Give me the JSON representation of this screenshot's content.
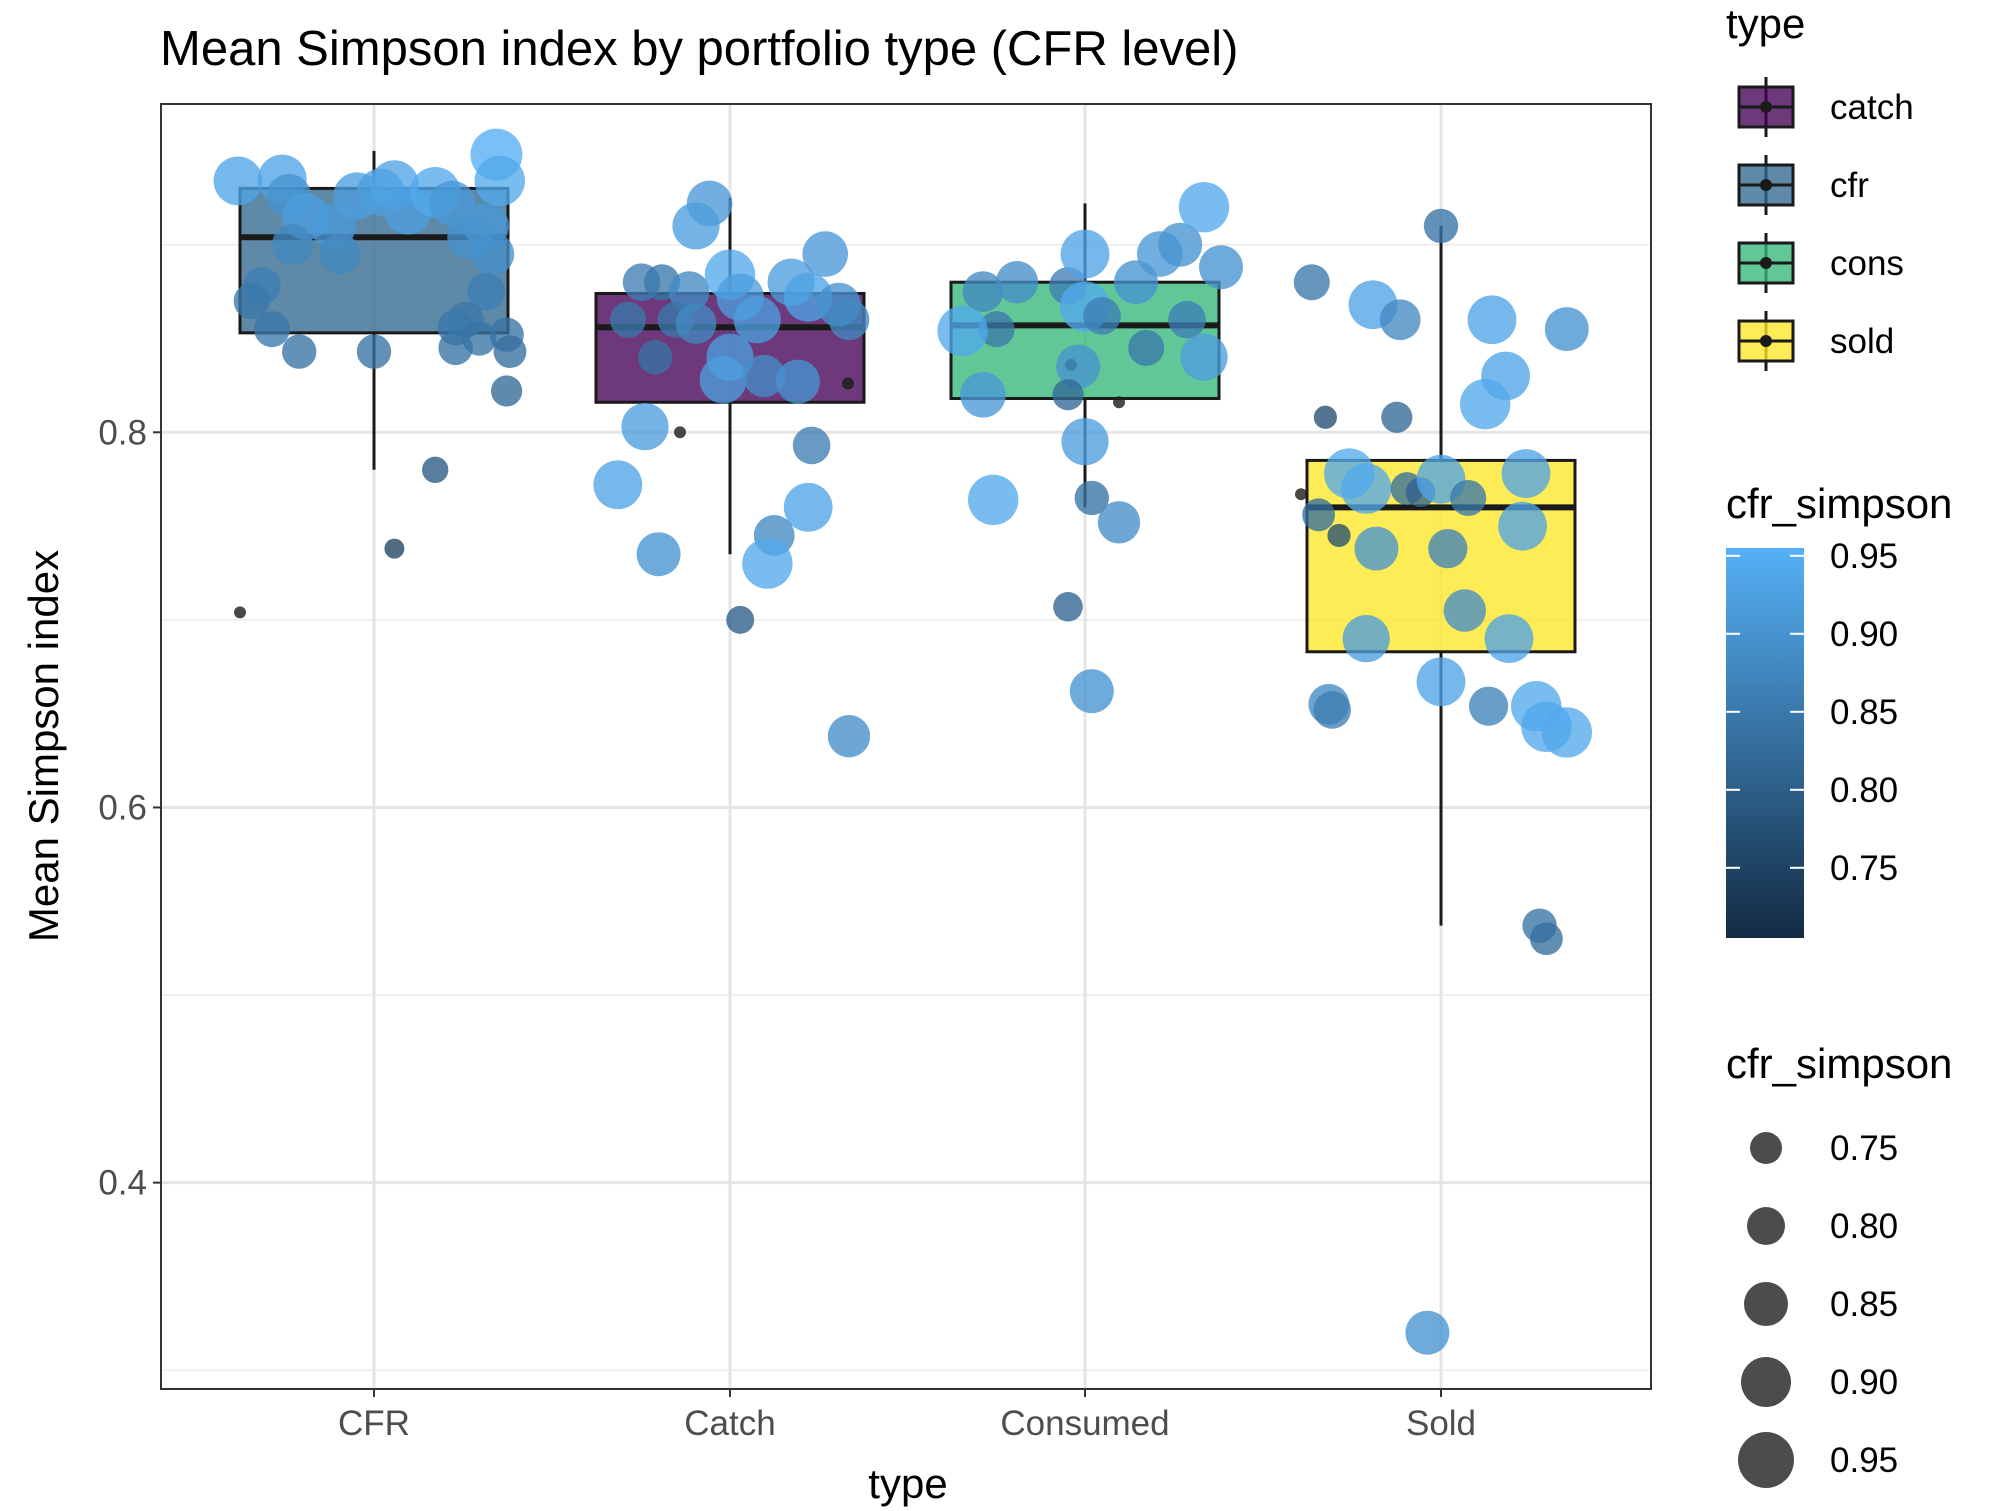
{
  "chart_data": {
    "type": "box",
    "title": "Mean Simpson index by portfolio type (CFR level)",
    "xlabel": "type",
    "ylabel": "Mean Simpson index",
    "ylim": [
      0.29,
      0.975
    ],
    "yticks": [
      0.4,
      0.6,
      0.8
    ],
    "ytick_labels": [
      "0.4",
      "0.6",
      "0.8"
    ],
    "grid": true,
    "categories": [
      "CFR",
      "Catch",
      "Consumed",
      "Sold"
    ],
    "boxes": [
      {
        "category": "CFR",
        "type": "cfr",
        "q1": 0.853,
        "median": 0.904,
        "q3": 0.93,
        "whisker_low": 0.78,
        "whisker_high": 0.95,
        "outliers": [
          0.704
        ]
      },
      {
        "category": "Catch",
        "type": "catch",
        "q1": 0.816,
        "median": 0.856,
        "q3": 0.874,
        "whisker_low": 0.735,
        "whisker_high": 0.925,
        "outliers": [
          0.8,
          0.826
        ]
      },
      {
        "category": "Consumed",
        "type": "cons",
        "q1": 0.818,
        "median": 0.857,
        "q3": 0.88,
        "whisker_low": 0.76,
        "whisker_high": 0.922,
        "outliers": [
          0.836,
          0.816
        ]
      },
      {
        "category": "Sold",
        "type": "sold",
        "q1": 0.683,
        "median": 0.76,
        "q3": 0.785,
        "whisker_low": 0.537,
        "whisker_high": 0.91,
        "outliers": [
          0.767
        ]
      }
    ],
    "points": [
      {
        "category": "CFR",
        "x_jitter": -0.4,
        "y": 0.934,
        "cfr_simpson": 0.93
      },
      {
        "category": "CFR",
        "x_jitter": -0.27,
        "y": 0.935,
        "cfr_simpson": 0.93
      },
      {
        "category": "CFR",
        "x_jitter": -0.25,
        "y": 0.926,
        "cfr_simpson": 0.9
      },
      {
        "category": "CFR",
        "x_jitter": -0.2,
        "y": 0.915,
        "cfr_simpson": 0.92
      },
      {
        "category": "CFR",
        "x_jitter": -0.12,
        "y": 0.91,
        "cfr_simpson": 0.91
      },
      {
        "category": "CFR",
        "x_jitter": -0.05,
        "y": 0.926,
        "cfr_simpson": 0.92
      },
      {
        "category": "CFR",
        "x_jitter": 0.02,
        "y": 0.928,
        "cfr_simpson": 0.92
      },
      {
        "category": "CFR",
        "x_jitter": 0.06,
        "y": 0.932,
        "cfr_simpson": 0.93
      },
      {
        "category": "CFR",
        "x_jitter": 0.1,
        "y": 0.918,
        "cfr_simpson": 0.92
      },
      {
        "category": "CFR",
        "x_jitter": 0.18,
        "y": 0.928,
        "cfr_simpson": 0.94
      },
      {
        "category": "CFR",
        "x_jitter": 0.23,
        "y": 0.922,
        "cfr_simpson": 0.91
      },
      {
        "category": "CFR",
        "x_jitter": 0.33,
        "y": 0.91,
        "cfr_simpson": 0.91
      },
      {
        "category": "CFR",
        "x_jitter": 0.36,
        "y": 0.948,
        "cfr_simpson": 0.95
      },
      {
        "category": "CFR",
        "x_jitter": 0.37,
        "y": 0.934,
        "cfr_simpson": 0.94
      },
      {
        "category": "CFR",
        "x_jitter": -0.24,
        "y": 0.9,
        "cfr_simpson": 0.88
      },
      {
        "category": "CFR",
        "x_jitter": -0.1,
        "y": 0.895,
        "cfr_simpson": 0.88
      },
      {
        "category": "CFR",
        "x_jitter": 0.35,
        "y": 0.895,
        "cfr_simpson": 0.89
      },
      {
        "category": "CFR",
        "x_jitter": 0.28,
        "y": 0.904,
        "cfr_simpson": 0.9
      },
      {
        "category": "CFR",
        "x_jitter": 0.33,
        "y": 0.875,
        "cfr_simpson": 0.86
      },
      {
        "category": "CFR",
        "x_jitter": -0.33,
        "y": 0.878,
        "cfr_simpson": 0.86
      },
      {
        "category": "CFR",
        "x_jitter": -0.36,
        "y": 0.87,
        "cfr_simpson": 0.85
      },
      {
        "category": "CFR",
        "x_jitter": -0.3,
        "y": 0.855,
        "cfr_simpson": 0.85
      },
      {
        "category": "CFR",
        "x_jitter": -0.22,
        "y": 0.843,
        "cfr_simpson": 0.84
      },
      {
        "category": "CFR",
        "x_jitter": 0.0,
        "y": 0.843,
        "cfr_simpson": 0.84
      },
      {
        "category": "CFR",
        "x_jitter": 0.24,
        "y": 0.856,
        "cfr_simpson": 0.85
      },
      {
        "category": "CFR",
        "x_jitter": 0.27,
        "y": 0.86,
        "cfr_simpson": 0.85
      },
      {
        "category": "CFR",
        "x_jitter": 0.24,
        "y": 0.845,
        "cfr_simpson": 0.84
      },
      {
        "category": "CFR",
        "x_jitter": 0.31,
        "y": 0.85,
        "cfr_simpson": 0.84
      },
      {
        "category": "CFR",
        "x_jitter": 0.39,
        "y": 0.852,
        "cfr_simpson": 0.84
      },
      {
        "category": "CFR",
        "x_jitter": 0.4,
        "y": 0.843,
        "cfr_simpson": 0.83
      },
      {
        "category": "CFR",
        "x_jitter": 0.39,
        "y": 0.822,
        "cfr_simpson": 0.82
      },
      {
        "category": "CFR",
        "x_jitter": 0.18,
        "y": 0.78,
        "cfr_simpson": 0.79
      },
      {
        "category": "CFR",
        "x_jitter": 0.06,
        "y": 0.738,
        "cfr_simpson": 0.75
      },
      {
        "category": "Catch",
        "x_jitter": -0.26,
        "y": 0.88,
        "cfr_simpson": 0.86
      },
      {
        "category": "Catch",
        "x_jitter": -0.3,
        "y": 0.86,
        "cfr_simpson": 0.85
      },
      {
        "category": "Catch",
        "x_jitter": -0.2,
        "y": 0.88,
        "cfr_simpson": 0.85
      },
      {
        "category": "Catch",
        "x_jitter": -0.12,
        "y": 0.875,
        "cfr_simpson": 0.88
      },
      {
        "category": "Catch",
        "x_jitter": -0.16,
        "y": 0.86,
        "cfr_simpson": 0.85
      },
      {
        "category": "Catch",
        "x_jitter": -0.22,
        "y": 0.84,
        "cfr_simpson": 0.84
      },
      {
        "category": "Catch",
        "x_jitter": -0.06,
        "y": 0.922,
        "cfr_simpson": 0.91
      },
      {
        "category": "Catch",
        "x_jitter": -0.1,
        "y": 0.858,
        "cfr_simpson": 0.88
      },
      {
        "category": "Catch",
        "x_jitter": -0.25,
        "y": 0.803,
        "cfr_simpson": 0.92
      },
      {
        "category": "Catch",
        "x_jitter": -0.33,
        "y": 0.772,
        "cfr_simpson": 0.93
      },
      {
        "category": "Catch",
        "x_jitter": -0.21,
        "y": 0.735,
        "cfr_simpson": 0.9
      },
      {
        "category": "Catch",
        "x_jitter": -0.1,
        "y": 0.91,
        "cfr_simpson": 0.92
      },
      {
        "category": "Catch",
        "x_jitter": 0.0,
        "y": 0.884,
        "cfr_simpson": 0.94
      },
      {
        "category": "Catch",
        "x_jitter": 0.03,
        "y": 0.872,
        "cfr_simpson": 0.92
      },
      {
        "category": "Catch",
        "x_jitter": 0.08,
        "y": 0.86,
        "cfr_simpson": 0.92
      },
      {
        "category": "Catch",
        "x_jitter": 0.0,
        "y": 0.84,
        "cfr_simpson": 0.92
      },
      {
        "category": "Catch",
        "x_jitter": -0.02,
        "y": 0.828,
        "cfr_simpson": 0.92
      },
      {
        "category": "Catch",
        "x_jitter": 0.1,
        "y": 0.83,
        "cfr_simpson": 0.89
      },
      {
        "category": "Catch",
        "x_jitter": 0.18,
        "y": 0.88,
        "cfr_simpson": 0.92
      },
      {
        "category": "Catch",
        "x_jitter": 0.23,
        "y": 0.872,
        "cfr_simpson": 0.93
      },
      {
        "category": "Catch",
        "x_jitter": 0.28,
        "y": 0.895,
        "cfr_simpson": 0.91
      },
      {
        "category": "Catch",
        "x_jitter": 0.32,
        "y": 0.868,
        "cfr_simpson": 0.9
      },
      {
        "category": "Catch",
        "x_jitter": 0.35,
        "y": 0.86,
        "cfr_simpson": 0.88
      },
      {
        "category": "Catch",
        "x_jitter": 0.2,
        "y": 0.827,
        "cfr_simpson": 0.9
      },
      {
        "category": "Catch",
        "x_jitter": 0.24,
        "y": 0.793,
        "cfr_simpson": 0.86
      },
      {
        "category": "Catch",
        "x_jitter": 0.23,
        "y": 0.76,
        "cfr_simpson": 0.93
      },
      {
        "category": "Catch",
        "x_jitter": 0.13,
        "y": 0.745,
        "cfr_simpson": 0.88
      },
      {
        "category": "Catch",
        "x_jitter": 0.11,
        "y": 0.73,
        "cfr_simpson": 0.94
      },
      {
        "category": "Catch",
        "x_jitter": 0.03,
        "y": 0.7,
        "cfr_simpson": 0.8
      },
      {
        "category": "Catch",
        "x_jitter": 0.35,
        "y": 0.638,
        "cfr_simpson": 0.89
      },
      {
        "category": "Consumed",
        "x_jitter": -0.3,
        "y": 0.875,
        "cfr_simpson": 0.88
      },
      {
        "category": "Consumed",
        "x_jitter": -0.2,
        "y": 0.88,
        "cfr_simpson": 0.89
      },
      {
        "category": "Consumed",
        "x_jitter": -0.26,
        "y": 0.855,
        "cfr_simpson": 0.85
      },
      {
        "category": "Consumed",
        "x_jitter": -0.36,
        "y": 0.854,
        "cfr_simpson": 0.94
      },
      {
        "category": "Consumed",
        "x_jitter": -0.3,
        "y": 0.82,
        "cfr_simpson": 0.91
      },
      {
        "category": "Consumed",
        "x_jitter": -0.27,
        "y": 0.764,
        "cfr_simpson": 0.94
      },
      {
        "category": "Consumed",
        "x_jitter": -0.05,
        "y": 0.878,
        "cfr_simpson": 0.86
      },
      {
        "category": "Consumed",
        "x_jitter": 0.0,
        "y": 0.895,
        "cfr_simpson": 0.93
      },
      {
        "category": "Consumed",
        "x_jitter": 0.0,
        "y": 0.867,
        "cfr_simpson": 0.94
      },
      {
        "category": "Consumed",
        "x_jitter": 0.05,
        "y": 0.862,
        "cfr_simpson": 0.86
      },
      {
        "category": "Consumed",
        "x_jitter": -0.02,
        "y": 0.835,
        "cfr_simpson": 0.9
      },
      {
        "category": "Consumed",
        "x_jitter": -0.05,
        "y": 0.82,
        "cfr_simpson": 0.82
      },
      {
        "category": "Consumed",
        "x_jitter": 0.0,
        "y": 0.795,
        "cfr_simpson": 0.92
      },
      {
        "category": "Consumed",
        "x_jitter": 0.02,
        "y": 0.765,
        "cfr_simpson": 0.84
      },
      {
        "category": "Consumed",
        "x_jitter": 0.1,
        "y": 0.752,
        "cfr_simpson": 0.89
      },
      {
        "category": "Consumed",
        "x_jitter": 0.15,
        "y": 0.88,
        "cfr_simpson": 0.9
      },
      {
        "category": "Consumed",
        "x_jitter": 0.22,
        "y": 0.895,
        "cfr_simpson": 0.91
      },
      {
        "category": "Consumed",
        "x_jitter": 0.28,
        "y": 0.9,
        "cfr_simpson": 0.9
      },
      {
        "category": "Consumed",
        "x_jitter": 0.35,
        "y": 0.92,
        "cfr_simpson": 0.94
      },
      {
        "category": "Consumed",
        "x_jitter": 0.4,
        "y": 0.888,
        "cfr_simpson": 0.9
      },
      {
        "category": "Consumed",
        "x_jitter": 0.3,
        "y": 0.86,
        "cfr_simpson": 0.86
      },
      {
        "category": "Consumed",
        "x_jitter": 0.35,
        "y": 0.84,
        "cfr_simpson": 0.92
      },
      {
        "category": "Consumed",
        "x_jitter": 0.18,
        "y": 0.845,
        "cfr_simpson": 0.85
      },
      {
        "category": "Consumed",
        "x_jitter": -0.05,
        "y": 0.707,
        "cfr_simpson": 0.81
      },
      {
        "category": "Consumed",
        "x_jitter": 0.02,
        "y": 0.662,
        "cfr_simpson": 0.9
      },
      {
        "category": "Sold",
        "x_jitter": -0.38,
        "y": 0.88,
        "cfr_simpson": 0.85
      },
      {
        "category": "Sold",
        "x_jitter": -0.2,
        "y": 0.868,
        "cfr_simpson": 0.93
      },
      {
        "category": "Sold",
        "x_jitter": -0.12,
        "y": 0.86,
        "cfr_simpson": 0.88
      },
      {
        "category": "Sold",
        "x_jitter": 0.0,
        "y": 0.91,
        "cfr_simpson": 0.84
      },
      {
        "category": "Sold",
        "x_jitter": -0.34,
        "y": 0.808,
        "cfr_simpson": 0.77
      },
      {
        "category": "Sold",
        "x_jitter": -0.13,
        "y": 0.808,
        "cfr_simpson": 0.82
      },
      {
        "category": "Sold",
        "x_jitter": 0.15,
        "y": 0.86,
        "cfr_simpson": 0.93
      },
      {
        "category": "Sold",
        "x_jitter": 0.19,
        "y": 0.83,
        "cfr_simpson": 0.93
      },
      {
        "category": "Sold",
        "x_jitter": 0.13,
        "y": 0.815,
        "cfr_simpson": 0.94
      },
      {
        "category": "Sold",
        "x_jitter": 0.37,
        "y": 0.855,
        "cfr_simpson": 0.9
      },
      {
        "category": "Sold",
        "x_jitter": -0.27,
        "y": 0.778,
        "cfr_simpson": 0.94
      },
      {
        "category": "Sold",
        "x_jitter": -0.22,
        "y": 0.77,
        "cfr_simpson": 0.94
      },
      {
        "category": "Sold",
        "x_jitter": -0.1,
        "y": 0.77,
        "cfr_simpson": 0.83
      },
      {
        "category": "Sold",
        "x_jitter": -0.06,
        "y": 0.768,
        "cfr_simpson": 0.81
      },
      {
        "category": "Sold",
        "x_jitter": 0.0,
        "y": 0.775,
        "cfr_simpson": 0.93
      },
      {
        "category": "Sold",
        "x_jitter": 0.08,
        "y": 0.765,
        "cfr_simpson": 0.85
      },
      {
        "category": "Sold",
        "x_jitter": 0.25,
        "y": 0.778,
        "cfr_simpson": 0.93
      },
      {
        "category": "Sold",
        "x_jitter": 0.24,
        "y": 0.75,
        "cfr_simpson": 0.93
      },
      {
        "category": "Sold",
        "x_jitter": -0.36,
        "y": 0.756,
        "cfr_simpson": 0.83
      },
      {
        "category": "Sold",
        "x_jitter": -0.3,
        "y": 0.745,
        "cfr_simpson": 0.77
      },
      {
        "category": "Sold",
        "x_jitter": -0.19,
        "y": 0.738,
        "cfr_simpson": 0.9
      },
      {
        "category": "Sold",
        "x_jitter": 0.02,
        "y": 0.738,
        "cfr_simpson": 0.87
      },
      {
        "category": "Sold",
        "x_jitter": 0.07,
        "y": 0.705,
        "cfr_simpson": 0.89
      },
      {
        "category": "Sold",
        "x_jitter": 0.2,
        "y": 0.69,
        "cfr_simpson": 0.93
      },
      {
        "category": "Sold",
        "x_jitter": -0.22,
        "y": 0.69,
        "cfr_simpson": 0.92
      },
      {
        "category": "Sold",
        "x_jitter": -0.33,
        "y": 0.655,
        "cfr_simpson": 0.88
      },
      {
        "category": "Sold",
        "x_jitter": -0.32,
        "y": 0.652,
        "cfr_simpson": 0.86
      },
      {
        "category": "Sold",
        "x_jitter": 0.0,
        "y": 0.667,
        "cfr_simpson": 0.93
      },
      {
        "category": "Sold",
        "x_jitter": 0.14,
        "y": 0.654,
        "cfr_simpson": 0.87
      },
      {
        "category": "Sold",
        "x_jitter": 0.28,
        "y": 0.654,
        "cfr_simpson": 0.94
      },
      {
        "category": "Sold",
        "x_jitter": 0.31,
        "y": 0.643,
        "cfr_simpson": 0.94
      },
      {
        "category": "Sold",
        "x_jitter": 0.37,
        "y": 0.64,
        "cfr_simpson": 0.94
      },
      {
        "category": "Sold",
        "x_jitter": 0.29,
        "y": 0.537,
        "cfr_simpson": 0.84
      },
      {
        "category": "Sold",
        "x_jitter": 0.31,
        "y": 0.53,
        "cfr_simpson": 0.83
      },
      {
        "category": "Sold",
        "x_jitter": -0.04,
        "y": 0.32,
        "cfr_simpson": 0.9
      }
    ],
    "legend_fill": {
      "title": "type",
      "entries": [
        {
          "label": "catch",
          "color": "#440154"
        },
        {
          "label": "cfr",
          "color": "#31688e"
        },
        {
          "label": "cons",
          "color": "#35b779"
        },
        {
          "label": "sold",
          "color": "#fde725"
        }
      ]
    },
    "legend_color": {
      "title": "cfr_simpson",
      "range": [
        0.705,
        0.955
      ],
      "low_color": "#132b43",
      "high_color": "#56b1f7",
      "labels": [
        "0.75",
        "0.80",
        "0.85",
        "0.90",
        "0.95"
      ],
      "values": [
        0.75,
        0.8,
        0.85,
        0.9,
        0.95
      ]
    },
    "legend_size": {
      "title": "cfr_simpson",
      "labels": [
        "0.75",
        "0.80",
        "0.85",
        "0.90",
        "0.95"
      ],
      "values": [
        0.75,
        0.8,
        0.85,
        0.9,
        0.95
      ]
    },
    "legend_placement": "right"
  }
}
